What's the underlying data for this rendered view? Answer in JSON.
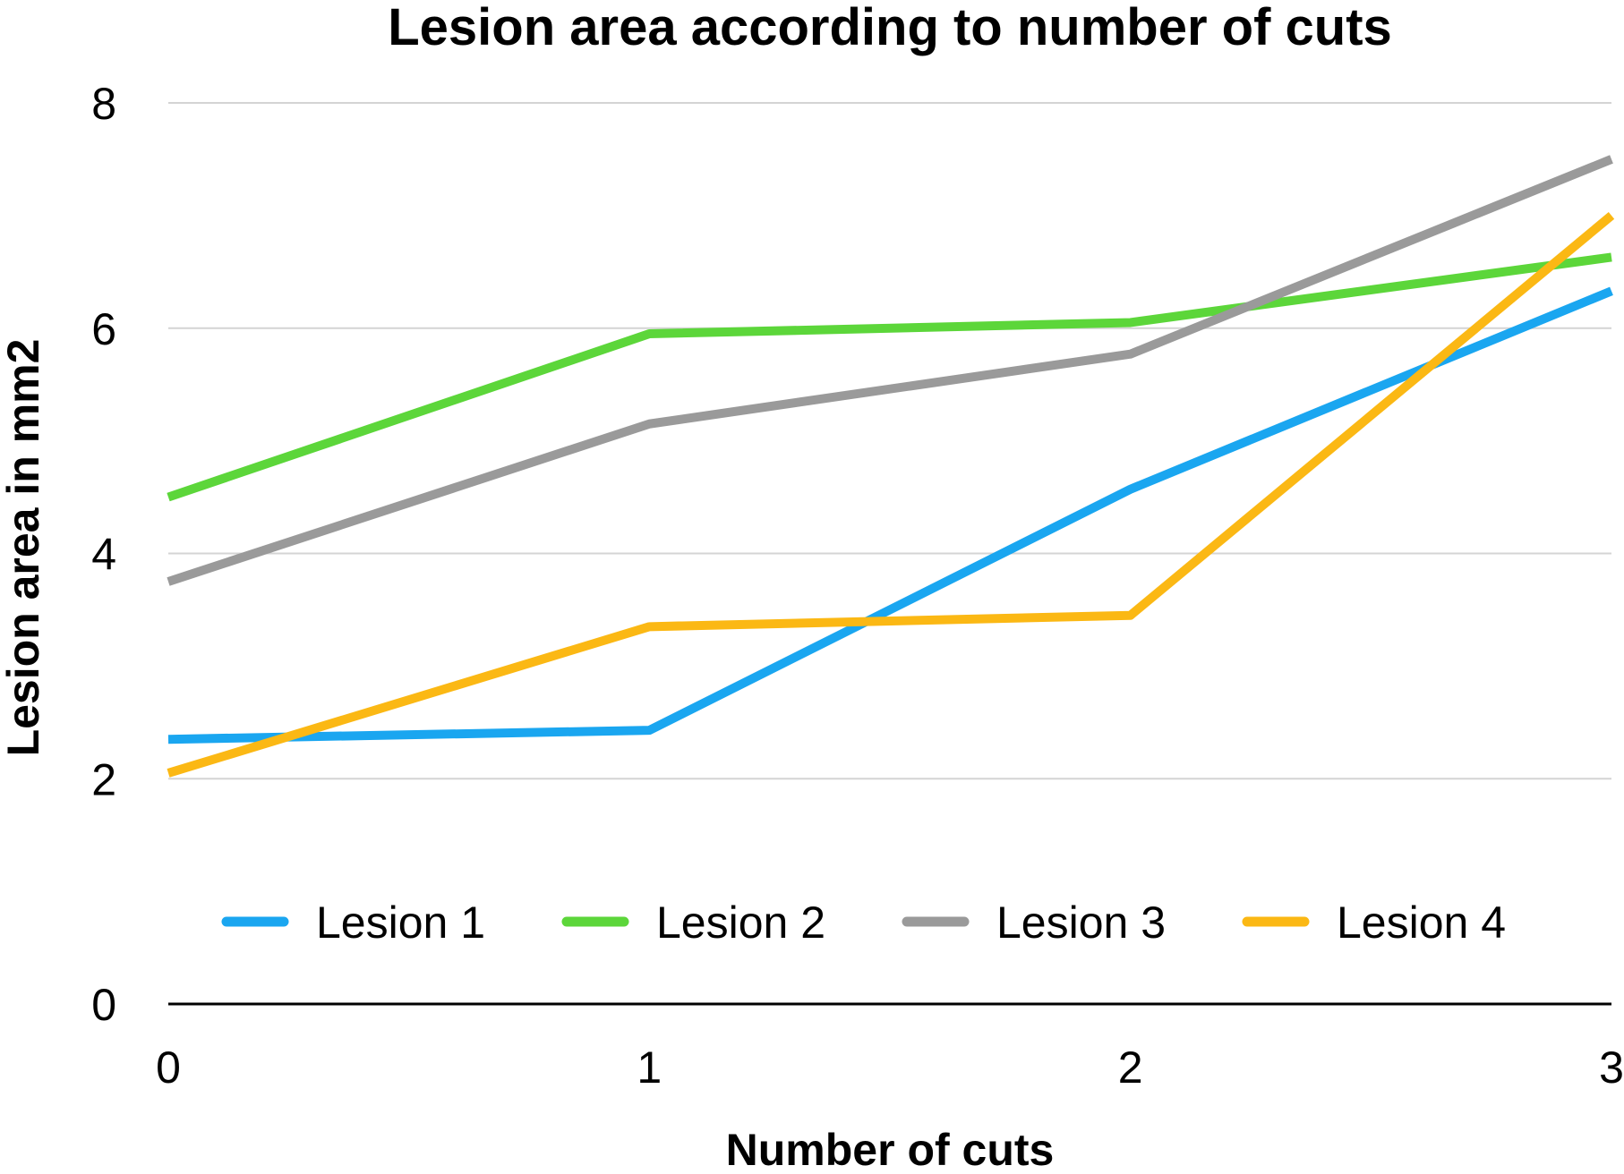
{
  "chart_data": {
    "type": "line",
    "title": "Lesion area according to number of cuts",
    "xlabel": "Number of cuts",
    "ylabel": "Lesion area in mm2",
    "x": [
      0,
      1,
      2,
      3
    ],
    "x_ticks": [
      "0",
      "1",
      "2",
      "3"
    ],
    "y_ticks": [
      "0",
      "2",
      "4",
      "6",
      "8"
    ],
    "xlim": [
      0,
      3
    ],
    "ylim": [
      0,
      8
    ],
    "grid": true,
    "legend_position": "bottom-inside",
    "series": [
      {
        "name": "Lesion 1",
        "color": "#1aa6f0",
        "values": [
          2.35,
          2.43,
          4.57,
          6.33
        ]
      },
      {
        "name": "Lesion 2",
        "color": "#5cd63a",
        "values": [
          4.5,
          5.95,
          6.05,
          6.63
        ]
      },
      {
        "name": "Lesion 3",
        "color": "#9a9a9a",
        "values": [
          3.75,
          5.15,
          5.77,
          7.5
        ]
      },
      {
        "name": "Lesion 4",
        "color": "#fbb814",
        "values": [
          2.05,
          3.35,
          3.45,
          7.0
        ]
      }
    ],
    "grid_color": "#d4d4d4",
    "baseline_color": "#000000"
  }
}
